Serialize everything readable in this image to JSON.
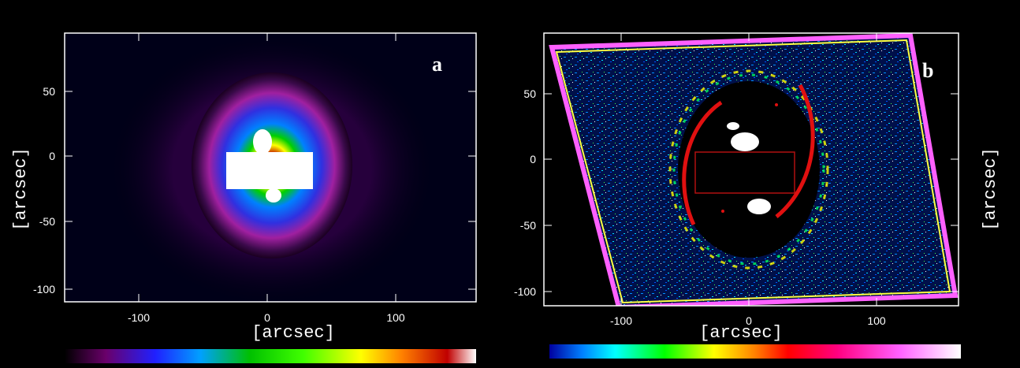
{
  "panels": [
    {
      "letter": "a",
      "xlabel": "[arcsec]",
      "ylabel": "[arcsec]",
      "xticks": [
        "-100",
        "0",
        "100"
      ],
      "yticks": [
        "50",
        "0",
        "-50",
        "-100"
      ]
    },
    {
      "letter": "b",
      "xlabel": "[arcsec]",
      "ylabel": "[arcsec]",
      "xticks": [
        "-100",
        "0",
        "100"
      ],
      "yticks": [
        "50",
        "0",
        "-50",
        "-100"
      ]
    }
  ],
  "colorbars": [
    {
      "name": "colorbar-a",
      "stops": [
        "#000000",
        "#6a006a",
        "#2020ff",
        "#00a0ff",
        "#00c000",
        "#40ff00",
        "#ffff00",
        "#ff8000",
        "#c00000",
        "#ffffff"
      ]
    },
    {
      "name": "colorbar-b",
      "stops": [
        "#0000a0",
        "#0080ff",
        "#00ffff",
        "#00ff00",
        "#ffff00",
        "#ff8000",
        "#ff0000",
        "#ff0080",
        "#ff60ff",
        "#ffffff"
      ]
    }
  ]
}
